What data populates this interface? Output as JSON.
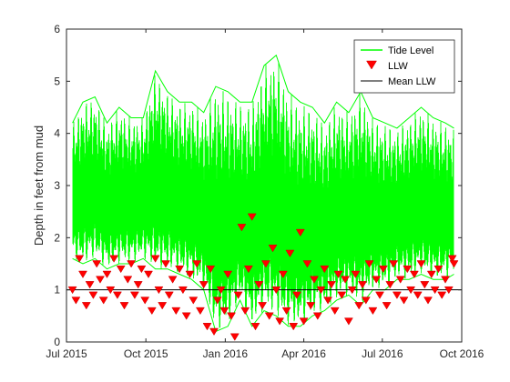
{
  "chart_data": {
    "type": "line",
    "title": "",
    "xlabel": "",
    "ylabel": "Depth in feet from mud",
    "ylim": [
      0,
      6
    ],
    "xlim": [
      "2015-07-01",
      "2016-10-01"
    ],
    "yticks": [
      "0",
      "1",
      "2",
      "3",
      "4",
      "5",
      "6"
    ],
    "xticks": [
      {
        "date": "2015-07-01",
        "label": "Jul 2015"
      },
      {
        "date": "2015-10-01",
        "label": "Oct 2015"
      },
      {
        "date": "2016-01-01",
        "label": "Jan 2016"
      },
      {
        "date": "2016-04-01",
        "label": "Apr 2016"
      },
      {
        "date": "2016-07-01",
        "label": "Jul 2016"
      },
      {
        "date": "2016-10-01",
        "label": "Oct 2016"
      }
    ],
    "grid": false,
    "legend_position": "top-right",
    "series": [
      {
        "name": "Tide Level",
        "kind": "band",
        "color": "#00ff00",
        "points": [
          {
            "x": "2015-07-08",
            "low": 1.6,
            "high": 4.2
          },
          {
            "x": "2015-07-20",
            "low": 1.5,
            "high": 4.6
          },
          {
            "x": "2015-08-03",
            "low": 1.6,
            "high": 4.7
          },
          {
            "x": "2015-08-17",
            "low": 1.4,
            "high": 4.2
          },
          {
            "x": "2015-08-31",
            "low": 1.5,
            "high": 4.5
          },
          {
            "x": "2015-09-14",
            "low": 1.5,
            "high": 4.3
          },
          {
            "x": "2015-09-28",
            "low": 1.6,
            "high": 4.3
          },
          {
            "x": "2015-10-12",
            "low": 1.4,
            "high": 5.2
          },
          {
            "x": "2015-10-26",
            "low": 1.4,
            "high": 4.8
          },
          {
            "x": "2015-11-09",
            "low": 1.3,
            "high": 4.6
          },
          {
            "x": "2015-11-23",
            "low": 1.2,
            "high": 4.6
          },
          {
            "x": "2015-12-07",
            "low": 1.0,
            "high": 4.4
          },
          {
            "x": "2015-12-21",
            "low": 0.2,
            "high": 4.9
          },
          {
            "x": "2016-01-04",
            "low": 0.3,
            "high": 4.8
          },
          {
            "x": "2016-01-18",
            "low": 0.8,
            "high": 4.6
          },
          {
            "x": "2016-02-01",
            "low": 0.3,
            "high": 4.6
          },
          {
            "x": "2016-02-15",
            "low": 0.6,
            "high": 5.3
          },
          {
            "x": "2016-02-29",
            "low": 0.5,
            "high": 5.5
          },
          {
            "x": "2016-03-14",
            "low": 0.3,
            "high": 4.8
          },
          {
            "x": "2016-03-28",
            "low": 0.3,
            "high": 4.6
          },
          {
            "x": "2016-04-11",
            "low": 0.5,
            "high": 4.5
          },
          {
            "x": "2016-04-25",
            "low": 0.6,
            "high": 4.2
          },
          {
            "x": "2016-05-09",
            "low": 0.8,
            "high": 4.6
          },
          {
            "x": "2016-05-23",
            "low": 0.9,
            "high": 4.4
          },
          {
            "x": "2016-06-06",
            "low": 0.7,
            "high": 4.8
          },
          {
            "x": "2016-06-20",
            "low": 1.0,
            "high": 4.3
          },
          {
            "x": "2016-07-04",
            "low": 1.0,
            "high": 4.2
          },
          {
            "x": "2016-07-18",
            "low": 1.2,
            "high": 4.1
          },
          {
            "x": "2016-08-01",
            "low": 1.2,
            "high": 4.3
          },
          {
            "x": "2016-08-15",
            "low": 1.3,
            "high": 4.5
          },
          {
            "x": "2016-08-29",
            "low": 1.2,
            "high": 4.3
          },
          {
            "x": "2016-09-12",
            "low": 1.2,
            "high": 4.2
          },
          {
            "x": "2016-09-22",
            "low": 1.3,
            "high": 4.1
          }
        ]
      },
      {
        "name": "LLW",
        "kind": "scatter",
        "marker": "triangle-down",
        "color": "#ff0000",
        "points": [
          {
            "x": "2015-07-08",
            "y": 1.0
          },
          {
            "x": "2015-07-12",
            "y": 0.8
          },
          {
            "x": "2015-07-16",
            "y": 1.6
          },
          {
            "x": "2015-07-20",
            "y": 1.3
          },
          {
            "x": "2015-07-24",
            "y": 0.7
          },
          {
            "x": "2015-07-28",
            "y": 1.1
          },
          {
            "x": "2015-08-01",
            "y": 0.9
          },
          {
            "x": "2015-08-05",
            "y": 1.5
          },
          {
            "x": "2015-08-09",
            "y": 1.2
          },
          {
            "x": "2015-08-13",
            "y": 0.8
          },
          {
            "x": "2015-08-17",
            "y": 1.3
          },
          {
            "x": "2015-08-21",
            "y": 1.0
          },
          {
            "x": "2015-08-25",
            "y": 1.6
          },
          {
            "x": "2015-08-29",
            "y": 0.9
          },
          {
            "x": "2015-09-02",
            "y": 1.4
          },
          {
            "x": "2015-09-06",
            "y": 0.7
          },
          {
            "x": "2015-09-10",
            "y": 1.2
          },
          {
            "x": "2015-09-14",
            "y": 1.5
          },
          {
            "x": "2015-09-18",
            "y": 0.9
          },
          {
            "x": "2015-09-22",
            "y": 1.1
          },
          {
            "x": "2015-09-26",
            "y": 1.4
          },
          {
            "x": "2015-09-30",
            "y": 0.8
          },
          {
            "x": "2015-10-04",
            "y": 1.3
          },
          {
            "x": "2015-10-08",
            "y": 0.6
          },
          {
            "x": "2015-10-12",
            "y": 1.6
          },
          {
            "x": "2015-10-16",
            "y": 1.0
          },
          {
            "x": "2015-10-20",
            "y": 0.7
          },
          {
            "x": "2015-10-24",
            "y": 1.5
          },
          {
            "x": "2015-10-28",
            "y": 0.9
          },
          {
            "x": "2015-11-01",
            "y": 1.2
          },
          {
            "x": "2015-11-05",
            "y": 0.6
          },
          {
            "x": "2015-11-09",
            "y": 1.4
          },
          {
            "x": "2015-11-13",
            "y": 1.0
          },
          {
            "x": "2015-11-17",
            "y": 0.5
          },
          {
            "x": "2015-11-21",
            "y": 1.3
          },
          {
            "x": "2015-11-25",
            "y": 0.8
          },
          {
            "x": "2015-11-29",
            "y": 1.5
          },
          {
            "x": "2015-12-03",
            "y": 0.6
          },
          {
            "x": "2015-12-07",
            "y": 1.1
          },
          {
            "x": "2015-12-11",
            "y": 0.3
          },
          {
            "x": "2015-12-15",
            "y": 1.4
          },
          {
            "x": "2015-12-19",
            "y": 0.2
          },
          {
            "x": "2015-12-23",
            "y": 0.8
          },
          {
            "x": "2015-12-27",
            "y": 1.0
          },
          {
            "x": "2015-12-31",
            "y": 0.6
          },
          {
            "x": "2016-01-04",
            "y": 1.3
          },
          {
            "x": "2016-01-08",
            "y": 0.5
          },
          {
            "x": "2016-01-12",
            "y": 0.1
          },
          {
            "x": "2016-01-16",
            "y": 0.9
          },
          {
            "x": "2016-01-20",
            "y": 2.2
          },
          {
            "x": "2016-01-24",
            "y": 0.6
          },
          {
            "x": "2016-01-28",
            "y": 1.4
          },
          {
            "x": "2016-02-01",
            "y": 2.4
          },
          {
            "x": "2016-02-05",
            "y": 0.3
          },
          {
            "x": "2016-02-09",
            "y": 1.1
          },
          {
            "x": "2016-02-13",
            "y": 0.7
          },
          {
            "x": "2016-02-17",
            "y": 1.5
          },
          {
            "x": "2016-02-21",
            "y": 0.5
          },
          {
            "x": "2016-02-25",
            "y": 1.8
          },
          {
            "x": "2016-02-29",
            "y": 1.0
          },
          {
            "x": "2016-03-04",
            "y": 0.4
          },
          {
            "x": "2016-03-08",
            "y": 1.3
          },
          {
            "x": "2016-03-12",
            "y": 0.6
          },
          {
            "x": "2016-03-16",
            "y": 1.7
          },
          {
            "x": "2016-03-20",
            "y": 0.3
          },
          {
            "x": "2016-03-24",
            "y": 0.9
          },
          {
            "x": "2016-03-28",
            "y": 2.1
          },
          {
            "x": "2016-04-01",
            "y": 0.4
          },
          {
            "x": "2016-04-05",
            "y": 1.5
          },
          {
            "x": "2016-04-09",
            "y": 0.7
          },
          {
            "x": "2016-04-13",
            "y": 1.2
          },
          {
            "x": "2016-04-17",
            "y": 0.5
          },
          {
            "x": "2016-04-21",
            "y": 1.0
          },
          {
            "x": "2016-04-25",
            "y": 1.4
          },
          {
            "x": "2016-04-29",
            "y": 0.8
          },
          {
            "x": "2016-05-03",
            "y": 1.1
          },
          {
            "x": "2016-05-07",
            "y": 0.6
          },
          {
            "x": "2016-05-11",
            "y": 1.3
          },
          {
            "x": "2016-05-15",
            "y": 0.9
          },
          {
            "x": "2016-05-19",
            "y": 1.2
          },
          {
            "x": "2016-05-23",
            "y": 0.4
          },
          {
            "x": "2016-05-27",
            "y": 1.0
          },
          {
            "x": "2016-05-31",
            "y": 1.3
          },
          {
            "x": "2016-06-04",
            "y": 0.7
          },
          {
            "x": "2016-06-08",
            "y": 1.1
          },
          {
            "x": "2016-06-12",
            "y": 0.8
          },
          {
            "x": "2016-06-16",
            "y": 1.5
          },
          {
            "x": "2016-06-20",
            "y": 0.6
          },
          {
            "x": "2016-06-24",
            "y": 1.2
          },
          {
            "x": "2016-06-28",
            "y": 0.9
          },
          {
            "x": "2016-07-02",
            "y": 1.4
          },
          {
            "x": "2016-07-06",
            "y": 0.7
          },
          {
            "x": "2016-07-10",
            "y": 1.1
          },
          {
            "x": "2016-07-14",
            "y": 1.5
          },
          {
            "x": "2016-07-18",
            "y": 0.9
          },
          {
            "x": "2016-07-22",
            "y": 1.2
          },
          {
            "x": "2016-07-26",
            "y": 0.8
          },
          {
            "x": "2016-07-30",
            "y": 1.4
          },
          {
            "x": "2016-08-03",
            "y": 1.0
          },
          {
            "x": "2016-08-07",
            "y": 1.3
          },
          {
            "x": "2016-08-11",
            "y": 0.9
          },
          {
            "x": "2016-08-15",
            "y": 1.5
          },
          {
            "x": "2016-08-19",
            "y": 1.1
          },
          {
            "x": "2016-08-23",
            "y": 0.8
          },
          {
            "x": "2016-08-27",
            "y": 1.3
          },
          {
            "x": "2016-08-31",
            "y": 1.0
          },
          {
            "x": "2016-09-04",
            "y": 1.4
          },
          {
            "x": "2016-09-08",
            "y": 0.9
          },
          {
            "x": "2016-09-12",
            "y": 1.2
          },
          {
            "x": "2016-09-16",
            "y": 1.0
          },
          {
            "x": "2016-09-20",
            "y": 1.6
          },
          {
            "x": "2016-09-22",
            "y": 1.5
          }
        ]
      },
      {
        "name": "Mean LLW",
        "kind": "hline",
        "color": "#000000",
        "y": 1.0
      }
    ]
  }
}
